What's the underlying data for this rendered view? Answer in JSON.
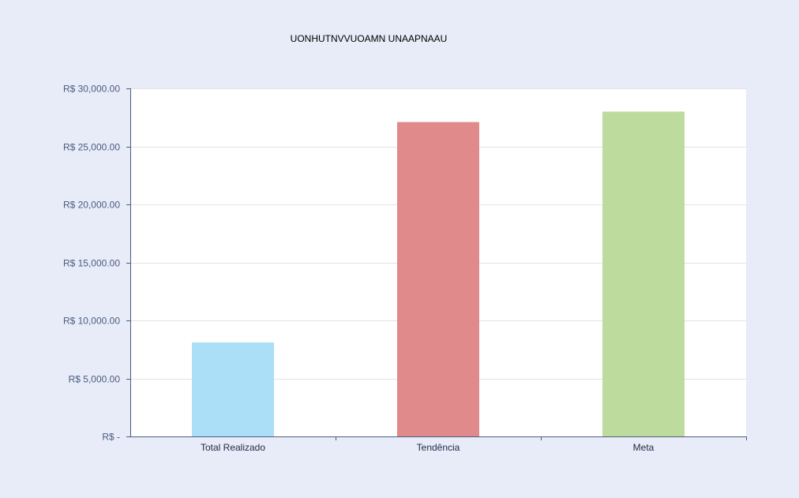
{
  "chart_data": {
    "type": "bar",
    "title": "UONHUTNVVUOAMN UNAAPNAAU",
    "xlabel": "",
    "ylabel": "",
    "categories": [
      "Total Realizado",
      "Tendência",
      "Meta"
    ],
    "values": [
      8100,
      27100,
      28000
    ],
    "colors": [
      "#abdef7",
      "#e08a8b",
      "#bedb9e"
    ],
    "ylim": [
      0,
      30000
    ],
    "yticks": [
      {
        "value": 0,
        "label": "R$ -"
      },
      {
        "value": 5000,
        "label": "R$ 5,000.00"
      },
      {
        "value": 10000,
        "label": "R$ 10,000.00"
      },
      {
        "value": 15000,
        "label": "R$ 15,000.00"
      },
      {
        "value": 20000,
        "label": "R$ 20,000.00"
      },
      {
        "value": 25000,
        "label": "R$ 25,000.00"
      },
      {
        "value": 30000,
        "label": "R$ 30,000.00"
      }
    ],
    "grid": true,
    "legend": "none"
  }
}
